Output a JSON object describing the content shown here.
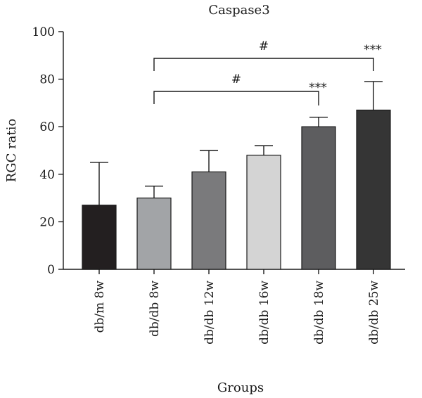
{
  "chart_data": {
    "type": "bar",
    "title": "Caspase3",
    "xlabel": "Groups",
    "ylabel": "RGC ratio",
    "ylim": [
      0,
      100
    ],
    "yticks": [
      0,
      20,
      40,
      60,
      80,
      100
    ],
    "categories": [
      "db/m 8w",
      "db/db 8w",
      "db/db 12w",
      "db/db 16w",
      "db/db 18w",
      "db/db 25w"
    ],
    "values": [
      27,
      30,
      41,
      48,
      60,
      67
    ],
    "errors": [
      18,
      5,
      9,
      4,
      4,
      12
    ],
    "bar_colors": [
      "#231f20",
      "#a2a4a7",
      "#7a7a7c",
      "#d4d4d4",
      "#5d5d5f",
      "#353535"
    ],
    "significance": [
      {
        "label": "***",
        "category": "db/db 18w"
      },
      {
        "label": "***",
        "category": "db/db 25w"
      }
    ],
    "comparisons": [
      {
        "label": "#",
        "from": "db/db 8w",
        "to": "db/db 18w"
      },
      {
        "label": "#",
        "from": "db/db 8w",
        "to": "db/db 25w"
      }
    ],
    "grid": false,
    "legend": "none"
  }
}
